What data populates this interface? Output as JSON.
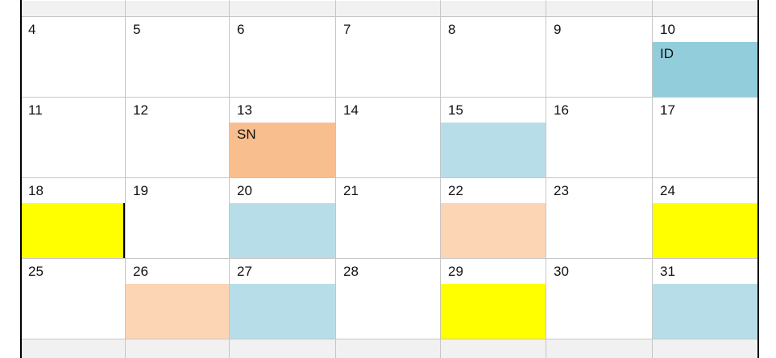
{
  "calendar": {
    "palette": {
      "teal": "#92CDDC",
      "light_blue": "#B7DEE8",
      "orange": "#F9BE8E",
      "peach": "#FCD5B4",
      "yellow": "#FFFF00",
      "header_fill": "#F1F1F1",
      "gridline": "#C6C6C6",
      "edge": "#000000"
    },
    "weeks": [
      {
        "days": [
          {
            "num": "4"
          },
          {
            "num": "5"
          },
          {
            "num": "6"
          },
          {
            "num": "7"
          },
          {
            "num": "8"
          },
          {
            "num": "9"
          },
          {
            "num": "10",
            "block": {
              "color": "teal",
              "label": "ID"
            }
          }
        ]
      },
      {
        "days": [
          {
            "num": "11"
          },
          {
            "num": "12"
          },
          {
            "num": "13",
            "block": {
              "color": "orange",
              "label": "SN"
            }
          },
          {
            "num": "14"
          },
          {
            "num": "15",
            "block": {
              "color": "light_blue"
            }
          },
          {
            "num": "16"
          },
          {
            "num": "17"
          }
        ]
      },
      {
        "days": [
          {
            "num": "18",
            "block": {
              "color": "yellow",
              "black_right_border": true
            }
          },
          {
            "num": "19"
          },
          {
            "num": "20",
            "block": {
              "color": "light_blue"
            }
          },
          {
            "num": "21"
          },
          {
            "num": "22",
            "block": {
              "color": "peach"
            }
          },
          {
            "num": "23"
          },
          {
            "num": "24",
            "block": {
              "color": "yellow"
            }
          }
        ]
      },
      {
        "days": [
          {
            "num": "25"
          },
          {
            "num": "26",
            "block": {
              "color": "peach"
            }
          },
          {
            "num": "27",
            "block": {
              "color": "light_blue"
            }
          },
          {
            "num": "28"
          },
          {
            "num": "29",
            "block": {
              "color": "yellow"
            }
          },
          {
            "num": "30"
          },
          {
            "num": "31",
            "block": {
              "color": "light_blue"
            }
          }
        ]
      }
    ]
  }
}
